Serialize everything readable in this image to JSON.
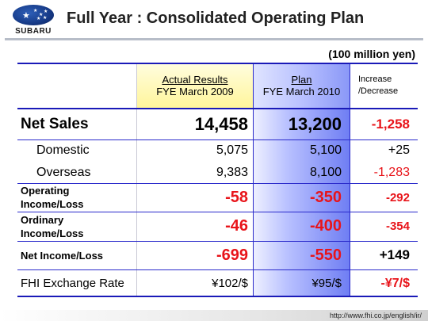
{
  "brand": {
    "logo_text": "SUBARU"
  },
  "title": "Full Year : Consolidated Operating Plan",
  "units": "(100 million yen)",
  "columns": {
    "actual_title": "Actual Results",
    "actual_sub": "FYE March 2009",
    "plan_title": "Plan",
    "plan_sub": "FYE March 2010",
    "change_line1": "Increase",
    "change_line2": "/Decrease"
  },
  "rows": {
    "net_sales": {
      "label": "Net Sales",
      "actual": "14,458",
      "plan": "13,200",
      "change": "-1,258"
    },
    "domestic": {
      "label": "Domestic",
      "actual": "5,075",
      "plan": "5,100",
      "change": "+25"
    },
    "overseas": {
      "label": "Overseas",
      "actual": "9,383",
      "plan": "8,100",
      "change": "-1,283"
    },
    "operating": {
      "label_line1": "Operating",
      "label_line2": "Income/Loss",
      "actual": "-58",
      "plan": "-350",
      "change": "-292"
    },
    "ordinary": {
      "label_line1": "Ordinary",
      "label_line2": "Income/Loss",
      "actual": "-46",
      "plan": "-400",
      "change": "-354"
    },
    "net_income": {
      "label": "Net Income/Loss",
      "actual": "-699",
      "plan": "-550",
      "change": "+149"
    },
    "fx": {
      "label": "FHI Exchange Rate",
      "actual": "¥102/$",
      "plan": "¥95/$",
      "change": "-¥7/$"
    }
  },
  "footer": {
    "url": "http://www.fhi.co.jp/english/ir/"
  },
  "colors": {
    "accent_blue": "#2a2acb",
    "negative_red": "#e8141a",
    "header_yellow": "#fff59a"
  }
}
